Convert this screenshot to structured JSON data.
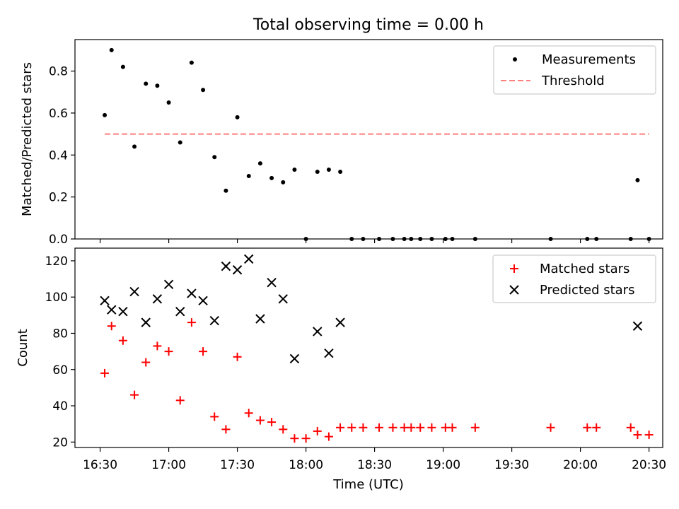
{
  "figure": {
    "suptitle": "Total observing time = 0.00 h"
  },
  "chart_data": [
    {
      "type": "scatter",
      "ylabel": "Matched/Predicted stars",
      "xlabel": "",
      "ylim": [
        0.0,
        0.95
      ],
      "yticks": [
        "0.0",
        "0.2",
        "0.4",
        "0.6",
        "0.8"
      ],
      "grid": false,
      "legend_position": "top-right",
      "series": [
        {
          "name": "Measurements",
          "marker": "dot",
          "color": "#000000",
          "x": [
            "16:32",
            "16:35",
            "16:40",
            "16:45",
            "16:50",
            "16:55",
            "17:00",
            "17:05",
            "17:10",
            "17:15",
            "17:20",
            "17:25",
            "17:30",
            "17:35",
            "17:40",
            "17:45",
            "17:50",
            "17:55",
            "18:00",
            "18:05",
            "18:10",
            "18:15",
            "18:20",
            "18:25",
            "18:32",
            "18:38",
            "18:43",
            "18:46",
            "18:50",
            "18:55",
            "19:01",
            "19:04",
            "19:14",
            "19:47",
            "20:03",
            "20:07",
            "20:22",
            "20:25",
            "20:30"
          ],
          "y": [
            0.59,
            0.9,
            0.82,
            0.44,
            0.74,
            0.73,
            0.65,
            0.46,
            0.84,
            0.71,
            0.39,
            0.23,
            0.58,
            0.3,
            0.36,
            0.29,
            0.27,
            0.33,
            0.0,
            0.32,
            0.33,
            0.32,
            0.0,
            0.0,
            0.0,
            0.0,
            0.0,
            0.0,
            0.0,
            0.0,
            0.0,
            0.0,
            0.0,
            0.0,
            0.0,
            0.0,
            0.0,
            0.28,
            0.0
          ]
        },
        {
          "name": "Threshold",
          "line": "dashed",
          "color": "#ff7f7f",
          "x": [
            "16:32",
            "20:30"
          ],
          "y": [
            0.5,
            0.5
          ]
        }
      ]
    },
    {
      "type": "scatter",
      "ylabel": "Count",
      "xlabel": "Time (UTC)",
      "ylim": [
        17,
        127
      ],
      "yticks": [
        "20",
        "40",
        "60",
        "80",
        "100",
        "120"
      ],
      "xticks": [
        "16:30",
        "17:00",
        "17:30",
        "18:00",
        "18:30",
        "19:00",
        "19:30",
        "20:00",
        "20:30"
      ],
      "grid": false,
      "legend_position": "top-right",
      "series": [
        {
          "name": "Matched stars",
          "marker": "plus",
          "color": "#ff0000",
          "x": [
            "16:32",
            "16:35",
            "16:40",
            "16:45",
            "16:50",
            "16:55",
            "17:00",
            "17:05",
            "17:10",
            "17:15",
            "17:20",
            "17:25",
            "17:30",
            "17:35",
            "17:40",
            "17:45",
            "17:50",
            "17:55",
            "18:00",
            "18:05",
            "18:10",
            "18:15",
            "18:20",
            "18:25",
            "18:32",
            "18:38",
            "18:43",
            "18:46",
            "18:50",
            "18:55",
            "19:01",
            "19:04",
            "19:14",
            "19:47",
            "20:03",
            "20:07",
            "20:22",
            "20:25",
            "20:30"
          ],
          "y": [
            58,
            84,
            76,
            46,
            64,
            73,
            70,
            43,
            86,
            70,
            34,
            27,
            67,
            36,
            32,
            31,
            27,
            22,
            22,
            26,
            23,
            28,
            28,
            28,
            28,
            28,
            28,
            28,
            28,
            28,
            28,
            28,
            28,
            28,
            28,
            28,
            28,
            24,
            24
          ]
        },
        {
          "name": "Predicted stars",
          "marker": "x",
          "color": "#000000",
          "x": [
            "16:32",
            "16:35",
            "16:40",
            "16:45",
            "16:50",
            "16:55",
            "17:00",
            "17:05",
            "17:10",
            "17:15",
            "17:20",
            "17:25",
            "17:30",
            "17:35",
            "17:40",
            "17:45",
            "17:50",
            "17:55",
            "18:05",
            "18:10",
            "18:15",
            "20:25"
          ],
          "y": [
            98,
            93,
            92,
            103,
            86,
            99,
            107,
            92,
            102,
            98,
            87,
            117,
            115,
            121,
            88,
            108,
            99,
            66,
            81,
            69,
            86,
            84
          ]
        }
      ]
    }
  ]
}
